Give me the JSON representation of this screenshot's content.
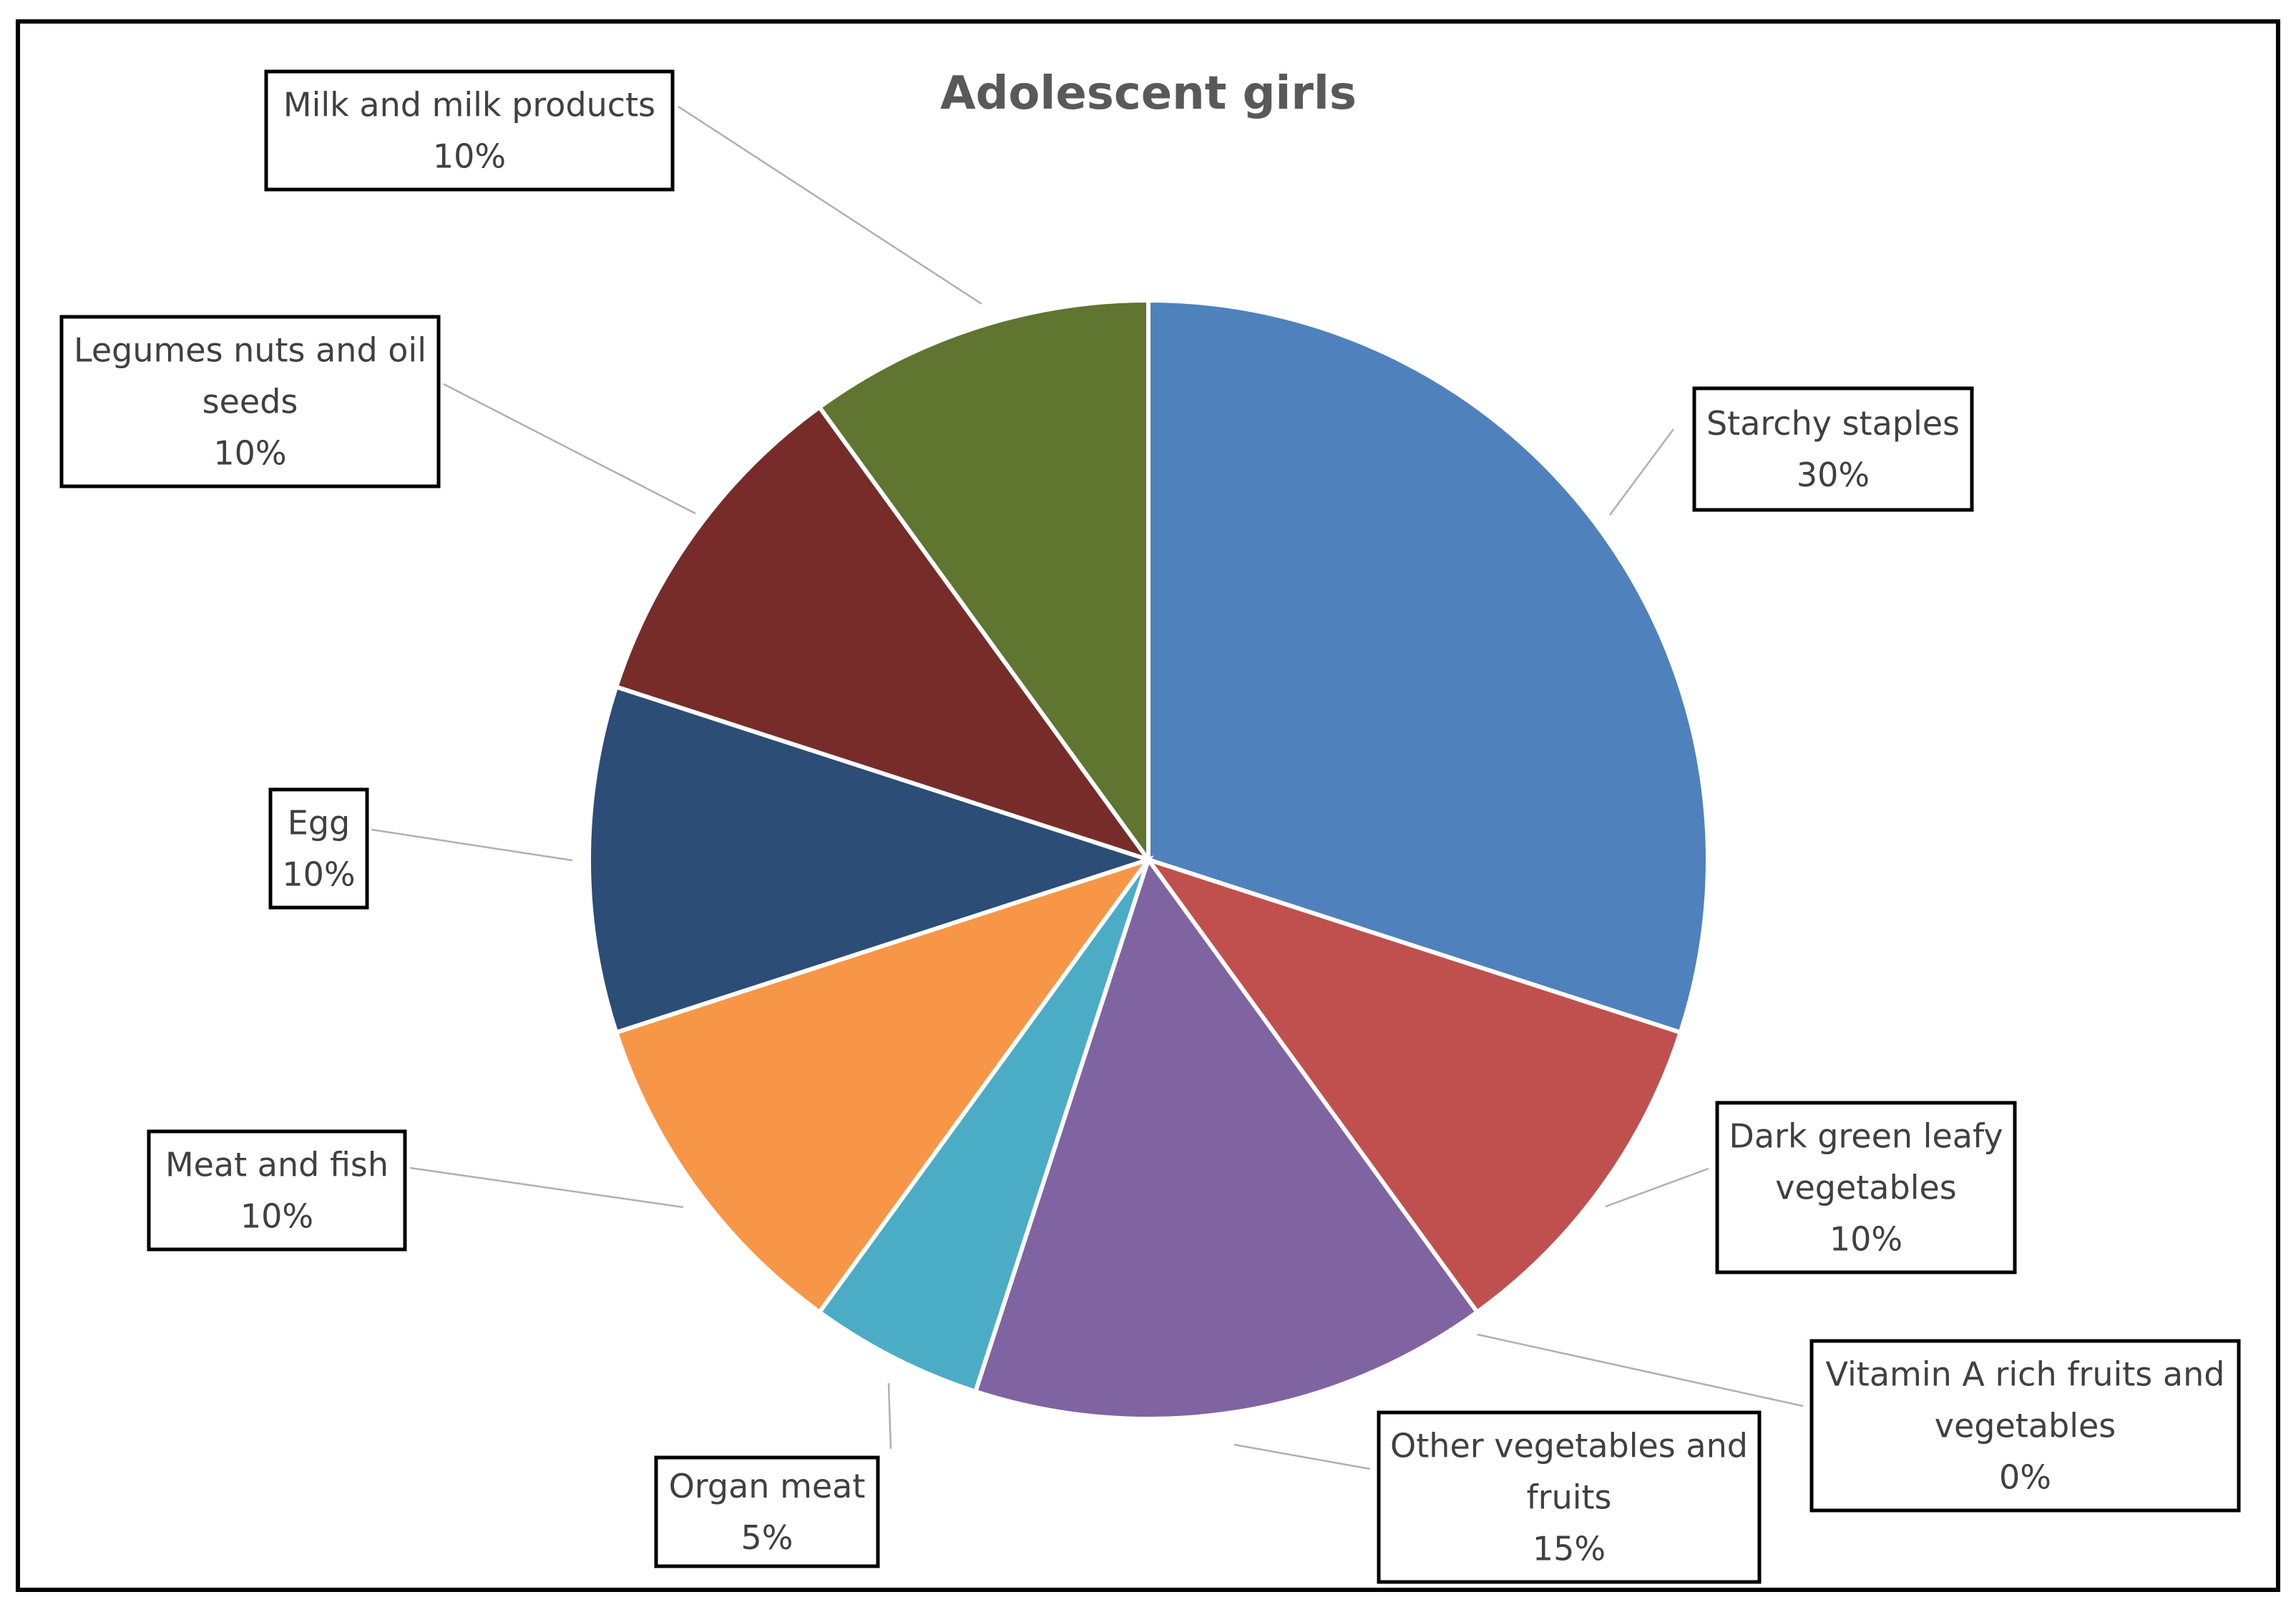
{
  "chart_data": {
    "type": "pie",
    "title": "Adolescent girls",
    "slices": [
      {
        "key": "starchy",
        "name": "Starchy staples",
        "label_lines": [
          "Starchy staples"
        ],
        "value": 30,
        "value_label": "30%",
        "color": "#4F81BD"
      },
      {
        "key": "dglv",
        "name": "Dark green leafy vegetables",
        "label_lines": [
          "Dark green  leafy",
          "vegetables"
        ],
        "value": 10,
        "value_label": "10%",
        "color": "#C0504D"
      },
      {
        "key": "vita",
        "name": "Vitamin A rich fruits and vegetables",
        "label_lines": [
          "Vitamin A rich fruits and",
          "vegetables"
        ],
        "value": 0,
        "value_label": "0%",
        "color": "#9BBB59"
      },
      {
        "key": "otherveg",
        "name": "Other vegetables and fruits",
        "label_lines": [
          "Other vegetables and",
          "fruits"
        ],
        "value": 15,
        "value_label": "15%",
        "color": "#8064A2"
      },
      {
        "key": "organ",
        "name": "Organ meat",
        "label_lines": [
          "Organ meat"
        ],
        "value": 5,
        "value_label": "5%",
        "color": "#4BACC6"
      },
      {
        "key": "meat",
        "name": "Meat and fish",
        "label_lines": [
          "Meat and fish"
        ],
        "value": 10,
        "value_label": "10%",
        "color": "#F79646"
      },
      {
        "key": "egg",
        "name": "Egg",
        "label_lines": [
          "Egg"
        ],
        "value": 10,
        "value_label": "10%",
        "color": "#2C4D75"
      },
      {
        "key": "legumes",
        "name": "Legumes nuts and oil seeds",
        "label_lines": [
          "Legumes nuts and oil",
          "seeds"
        ],
        "value": 10,
        "value_label": "10%",
        "color": "#772C2A"
      },
      {
        "key": "milk",
        "name": "Milk and milk products",
        "label_lines": [
          "Milk and milk products"
        ],
        "value": 10,
        "value_label": "10%",
        "color": "#5F7530"
      }
    ]
  }
}
